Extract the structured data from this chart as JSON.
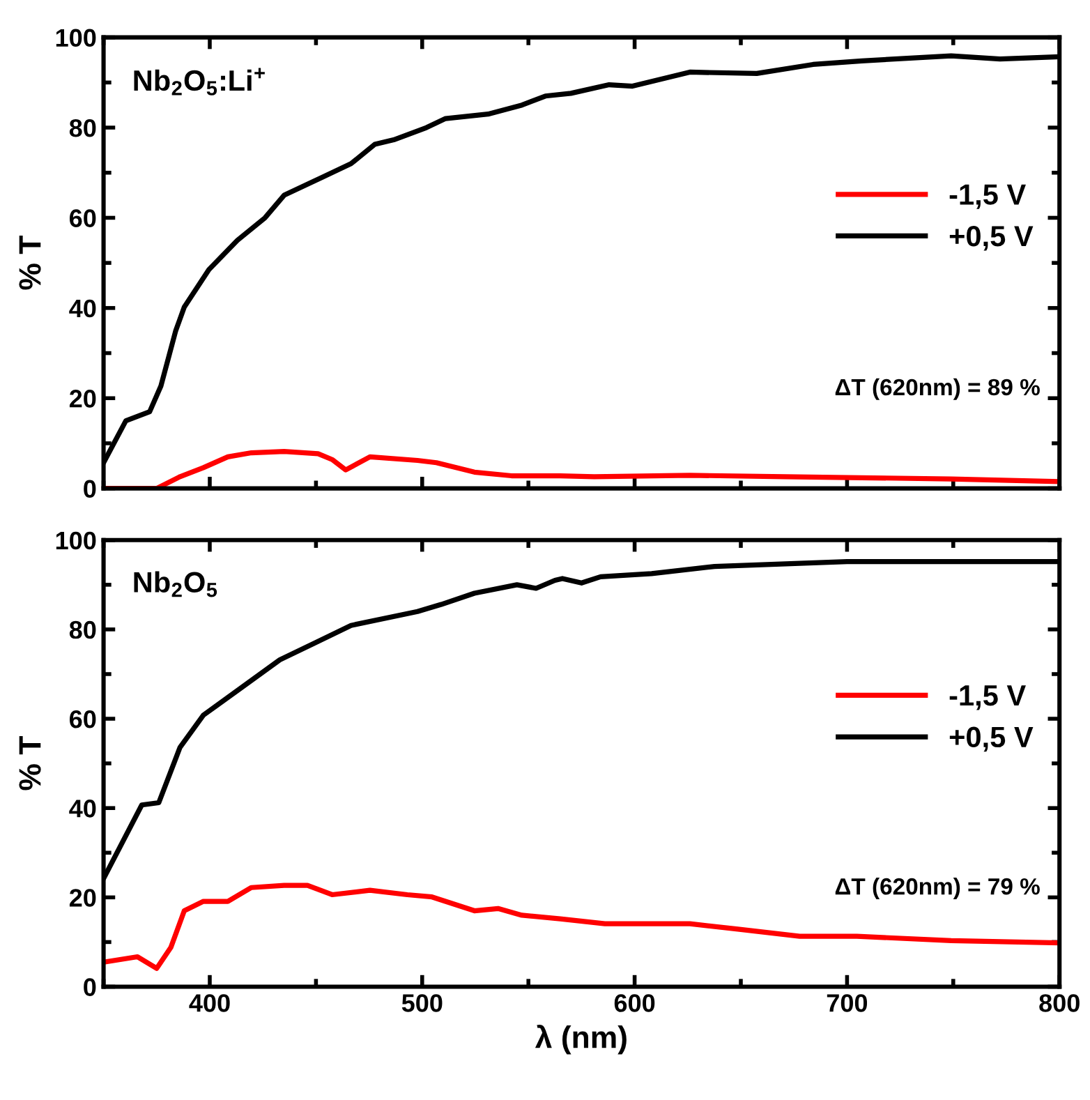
{
  "chart_data": [
    {
      "type": "line",
      "ylabel": "% T",
      "xlim": [
        350,
        800
      ],
      "xticks": [
        400,
        500,
        600,
        700,
        800
      ],
      "ylim": [
        0,
        100
      ],
      "yticks": [
        0,
        20,
        40,
        60,
        80,
        100
      ],
      "tick_labels": "y",
      "legend": "right",
      "grid": false,
      "marker": "none",
      "line_style": "solid",
      "annotations": [
        "Nb$_{2}$O$_{5}$:Li$^{+}$",
        "ΔT (620nm) = 89 %"
      ],
      "series": [
        {
          "name": "-1,5 V",
          "color": "#ff0000",
          "x": [
            350,
            375,
            386,
            397,
            408.5,
            419.6,
            435,
            451,
            457.6,
            464,
            475.4,
            497.8,
            506.7,
            524.6,
            542,
            565,
            581,
            626,
            671,
            749,
            800
          ],
          "values": [
            0,
            0,
            2.6,
            4.6,
            7,
            7.9,
            8.2,
            7.7,
            6.4,
            4.1,
            7,
            6.2,
            5.7,
            3.6,
            2.8,
            2.8,
            2.6,
            2.9,
            2.6,
            2.1,
            1.5
          ]
        },
        {
          "name": "+0,5 V",
          "color": "#000000",
          "x": [
            350,
            360.5,
            371.7,
            377,
            384,
            388,
            399.6,
            413,
            426,
            435,
            453,
            466.5,
            477.7,
            486.6,
            502,
            511,
            531,
            547,
            558,
            570,
            588,
            599,
            626,
            657.5,
            684,
            707,
            749,
            772,
            800
          ],
          "values": [
            5.7,
            15,
            17,
            22.7,
            35,
            40.2,
            48.5,
            55,
            60,
            65,
            69,
            72,
            76.3,
            77.3,
            80,
            82,
            83,
            85,
            87,
            87.6,
            89.5,
            89.2,
            92.3,
            92,
            94,
            94.8,
            95.9,
            95.2,
            95.7
          ]
        }
      ]
    },
    {
      "type": "line",
      "ylabel": "% T",
      "xlabel": "λ (nm)",
      "xlim": [
        350,
        800
      ],
      "xticks": [
        400,
        500,
        600,
        700,
        800
      ],
      "ylim": [
        0,
        100
      ],
      "yticks": [
        0,
        20,
        40,
        60,
        80,
        100
      ],
      "legend": "right",
      "grid": false,
      "marker": "none",
      "line_style": "solid",
      "annotations": [
        "Nb$_{2}$O$_{5}$",
        "ΔT (620nm) = 79 %"
      ],
      "series": [
        {
          "name": "-1,5 V",
          "color": "#ff0000",
          "x": [
            350,
            366,
            375,
            381.7,
            388,
            397,
            408.5,
            419.6,
            435,
            446,
            457.6,
            475.4,
            493,
            504.6,
            524.6,
            535.7,
            546.9,
            565,
            586,
            626,
            648.6,
            677.7,
            704.6,
            749,
            800
          ],
          "values": [
            5.5,
            6.7,
            4.1,
            8.8,
            17,
            19.1,
            19.1,
            22.2,
            22.7,
            22.7,
            20.6,
            21.6,
            20.6,
            20.1,
            17,
            17.5,
            16,
            15.2,
            14.1,
            14.1,
            12.9,
            11.3,
            11.3,
            10.3,
            9.8
          ]
        },
        {
          "name": "+0,5 V",
          "color": "#000000",
          "x": [
            350,
            368,
            376,
            386,
            397,
            415,
            433,
            448.7,
            466.5,
            497.8,
            509,
            524.6,
            544.6,
            553.6,
            562.5,
            566,
            575,
            584,
            608,
            637.6,
            700,
            749,
            800
          ],
          "values": [
            24.2,
            40.7,
            41.2,
            53.6,
            60.8,
            67,
            73.2,
            76.8,
            80.9,
            84,
            85.6,
            88.1,
            90,
            89.2,
            91,
            91.4,
            90.4,
            91.8,
            92.5,
            94.1,
            95.2,
            95.2,
            95.2
          ]
        }
      ]
    }
  ]
}
